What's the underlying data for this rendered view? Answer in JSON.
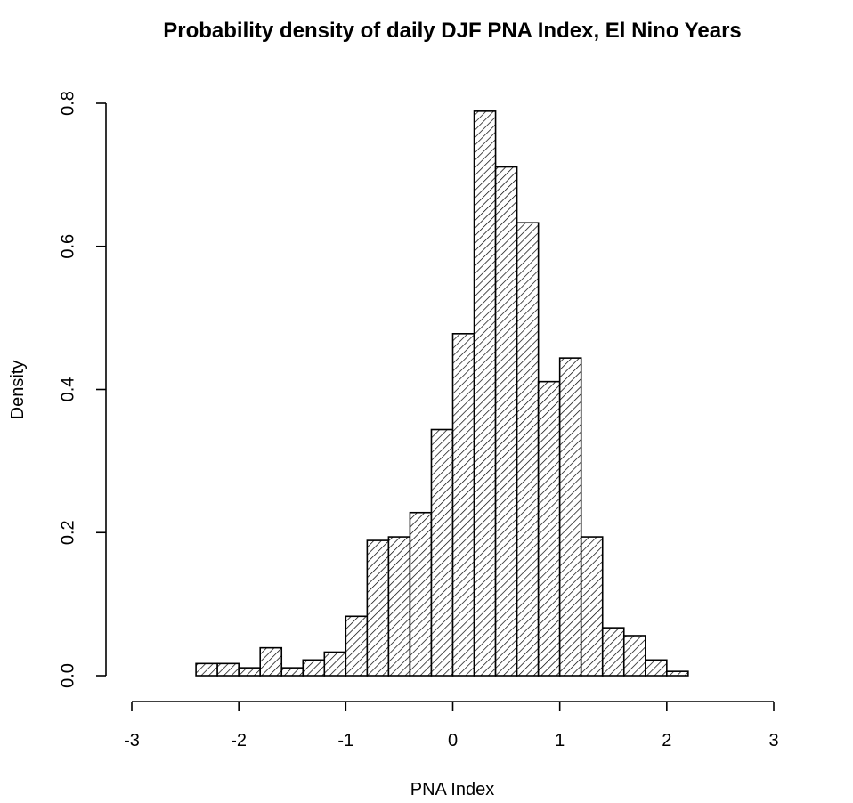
{
  "chart_data": {
    "type": "bar",
    "title": "Probability density of daily DJF PNA Index, El Nino Years",
    "xlabel": "PNA Index",
    "ylabel": "Density",
    "xlim": [
      -3,
      3
    ],
    "ylim": [
      0,
      0.8
    ],
    "x_ticks": [
      -3,
      -2,
      -1,
      0,
      1,
      2,
      3
    ],
    "x_tick_labels": [
      "-3",
      "-2",
      "-1",
      "0",
      "1",
      "2",
      "3"
    ],
    "y_ticks": [
      0,
      0.2,
      0.4,
      0.6,
      0.8
    ],
    "y_tick_labels": [
      "0.0",
      "0.2",
      "0.4",
      "0.6",
      "0.8"
    ],
    "bin_width": 0.2,
    "bin_edges": [
      -3.0,
      -2.8,
      -2.6,
      -2.4,
      -2.2,
      -2.0,
      -1.8,
      -1.6,
      -1.4,
      -1.2,
      -1.0,
      -0.8,
      -0.6,
      -0.4,
      -0.2,
      0.0,
      0.2,
      0.4,
      0.6,
      0.8,
      1.0,
      1.2,
      1.4,
      1.6,
      1.8,
      2.0,
      2.2,
      2.4,
      2.6,
      2.8,
      3.0
    ],
    "density": [
      0.0,
      0.0,
      0.0,
      0.017,
      0.017,
      0.011,
      0.039,
      0.011,
      0.022,
      0.033,
      0.083,
      0.189,
      0.194,
      0.228,
      0.344,
      0.478,
      0.789,
      0.711,
      0.633,
      0.411,
      0.444,
      0.194,
      0.067,
      0.056,
      0.022,
      0.006,
      0.0,
      0.0,
      0.0,
      0.0
    ],
    "fill_pattern": "diagonal-hatch",
    "bar_color": "#ffffff",
    "line_color": "#000000",
    "grid": false,
    "legend": "none"
  }
}
